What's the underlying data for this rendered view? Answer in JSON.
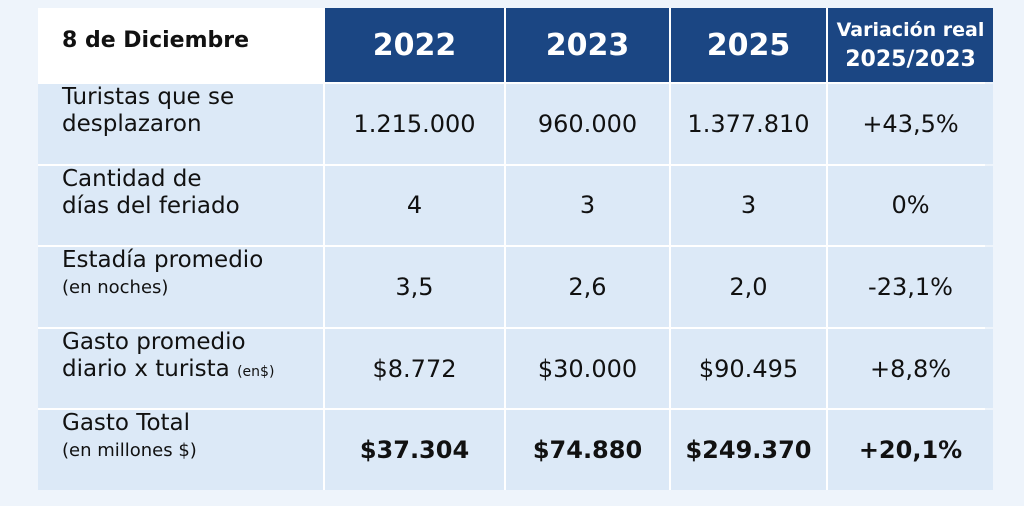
{
  "header": {
    "corner": "8 de Diciembre",
    "years": [
      "2022",
      "2023",
      "2025"
    ],
    "variation": [
      "Variación real",
      "2025/2023"
    ]
  },
  "rows": [
    {
      "label": [
        "Turistas que se",
        "desplazaron"
      ],
      "cells": [
        "1.215.000",
        "960.000",
        "1.377.810",
        "+43,5%"
      ]
    },
    {
      "label": [
        "Cantidad de",
        "días del feriado"
      ],
      "cells": [
        "4",
        "3",
        "3",
        "0%"
      ]
    },
    {
      "label": [
        "Estadía promedio"
      ],
      "note": "(en noches)",
      "cells": [
        "3,5",
        "2,6",
        "2,0",
        "-23,1%"
      ]
    },
    {
      "label": [
        "Gasto promedio",
        "diario x turista"
      ],
      "inline_note": "(en$)",
      "cells": [
        "$8.772",
        "$30.000",
        "$90.495",
        "+8,8%"
      ]
    },
    {
      "label": [
        "Gasto Total"
      ],
      "note": "(en millones $)",
      "cells": [
        "$37.304",
        "$74.880",
        "$249.370",
        "+20,1%"
      ]
    }
  ]
}
